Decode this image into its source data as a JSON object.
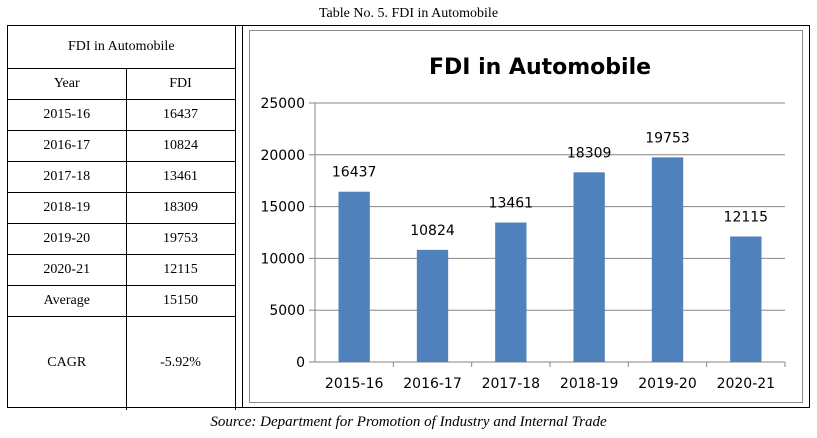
{
  "caption": "Table No. 5. FDI in Automobile",
  "table": {
    "title": "FDI in Automobile",
    "headers": [
      "Year",
      "FDI"
    ],
    "rows": [
      [
        "2015-16",
        "16437"
      ],
      [
        "2016-17",
        "10824"
      ],
      [
        "2017-18",
        "13461"
      ],
      [
        "2018-19",
        "18309"
      ],
      [
        "2019-20",
        "19753"
      ],
      [
        "2020-21",
        "12115"
      ],
      [
        "Average",
        "15150"
      ],
      [
        "CAGR",
        "-5.92%"
      ]
    ]
  },
  "chart_data": {
    "type": "bar",
    "title": "FDI in Automobile",
    "categories": [
      "2015-16",
      "2016-17",
      "2017-18",
      "2018-19",
      "2019-20",
      "2020-21"
    ],
    "values": [
      16437,
      10824,
      13461,
      18309,
      19753,
      12115
    ],
    "ylim": [
      0,
      25000
    ],
    "yticks": [
      0,
      5000,
      10000,
      15000,
      20000,
      25000
    ],
    "grid": true,
    "legend": "none",
    "bar_color": "#4f81bd",
    "grid_color": "#868686"
  },
  "source": "Source: Department for Promotion of Industry and Internal Trade"
}
